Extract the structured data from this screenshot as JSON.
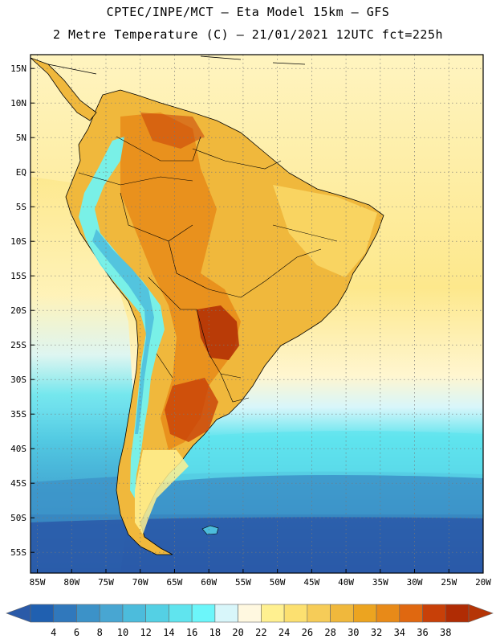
{
  "header": {
    "line1": "CPTEC/INPE/MCT –  Eta Model 15km – GFS",
    "line2": "2 Metre Temperature (C) – 21/01/2021 12UTC fct=225h"
  },
  "map": {
    "lat_range": [
      -58,
      17
    ],
    "lon_range": [
      -86,
      -20
    ],
    "lat_labels": [
      "15N",
      "10N",
      "5N",
      "EQ",
      "5S",
      "10S",
      "15S",
      "20S",
      "25S",
      "30S",
      "35S",
      "40S",
      "45S",
      "50S",
      "55S"
    ],
    "lat_values": [
      15,
      10,
      5,
      0,
      -5,
      -10,
      -15,
      -20,
      -25,
      -30,
      -35,
      -40,
      -45,
      -50,
      -55
    ],
    "lon_labels": [
      "85W",
      "80W",
      "75W",
      "70W",
      "65W",
      "60W",
      "55W",
      "50W",
      "45W",
      "40W",
      "35W",
      "30W",
      "25W",
      "20W"
    ],
    "lon_values": [
      -85,
      -80,
      -75,
      -70,
      -65,
      -60,
      -55,
      -50,
      -45,
      -40,
      -35,
      -30,
      -25,
      -20
    ]
  },
  "colorbar": {
    "labels": [
      "4",
      "6",
      "8",
      "10",
      "12",
      "14",
      "16",
      "18",
      "20",
      "22",
      "24",
      "26",
      "28",
      "30",
      "32",
      "34",
      "36",
      "38"
    ],
    "colors": [
      "#2060b0",
      "#3078bc",
      "#3c92c8",
      "#48a6d2",
      "#4cbcdc",
      "#54d0e4",
      "#60e4ee",
      "#6cf6fa",
      "#d8f6fa",
      "#fff8e0",
      "#fff090",
      "#fce070",
      "#f6cc58",
      "#f0b83c",
      "#eca420",
      "#e88a18",
      "#e06810",
      "#c84008",
      "#b02c04"
    ],
    "low_color": "#2a5aa8",
    "high_color": "#b53506"
  },
  "colors": {
    "ocean_cold": "#2a5aa8",
    "ocean_cool": "#3c92c8",
    "ocean_mild": "#60e4ee",
    "ocean_pale": "#d8f6fa",
    "ocean_warm": "#fff0b0",
    "ocean_tropic": "#fce070",
    "land_warm": "#f0b83c",
    "land_hot": "#e88a18",
    "land_very_hot": "#c84008",
    "andes": "#6cf6fa"
  }
}
